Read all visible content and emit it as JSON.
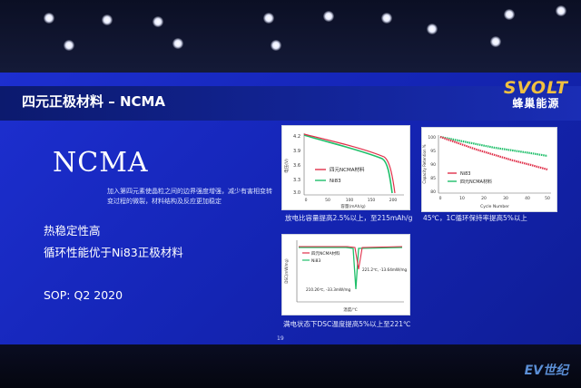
{
  "slide": {
    "title": "四元正极材料 – NCMA",
    "logo_main": "SVOLT",
    "logo_sub": "蜂巢能源",
    "heading": "NCMA",
    "description": "加入第四元素使晶粒之间的边界强度增强，减少有害相变转变过程的微裂，材料结构及反应更加稳定",
    "bullets": [
      "热稳定性高",
      "循环性能优于Ni83正极材料"
    ],
    "sop": "SOP: Q2 2020",
    "page_number": "19"
  },
  "charts": {
    "discharge": {
      "ylabel": "电压(V)",
      "xlabel": "容量(mAh/g)",
      "yticks": [
        "4.2",
        "3.9",
        "3.6",
        "3.3",
        "3.0"
      ],
      "xticks": [
        "0",
        "50",
        "100",
        "150",
        "200"
      ],
      "legend": [
        "四元NCMA材料",
        "Ni83"
      ],
      "caption": "放电比容量提高2.5%以上，至215mAh/g"
    },
    "cycle": {
      "ylabel": "Capacity Retention %",
      "xlabel": "Cycle Number",
      "yticks": [
        "100",
        "95",
        "90",
        "85",
        "80"
      ],
      "xticks": [
        "0",
        "10",
        "20",
        "30",
        "40",
        "50"
      ],
      "legend": [
        "Ni83",
        "四元NCMA材料"
      ],
      "caption": "45℃，1C循环保持率提高5%以上"
    },
    "dsc": {
      "ylabel": "DSC(mW/mg)",
      "xlabel": "温度/℃",
      "legend": [
        "四元NCMA材料",
        "Ni83"
      ],
      "annotation_1": "221.2℃, -13.64mW/mg",
      "annotation_2": "210.26℃, -33.3mW/mg",
      "caption": "满电状态下DSC温度提高5%以上至221℃"
    }
  },
  "watermark": "EV世纪",
  "colors": {
    "slide_blue": "#1b2ec8",
    "ncma_line": "#e0304a",
    "ni83_line": "#1fbf6a",
    "logo_gold": "#f0c040"
  }
}
